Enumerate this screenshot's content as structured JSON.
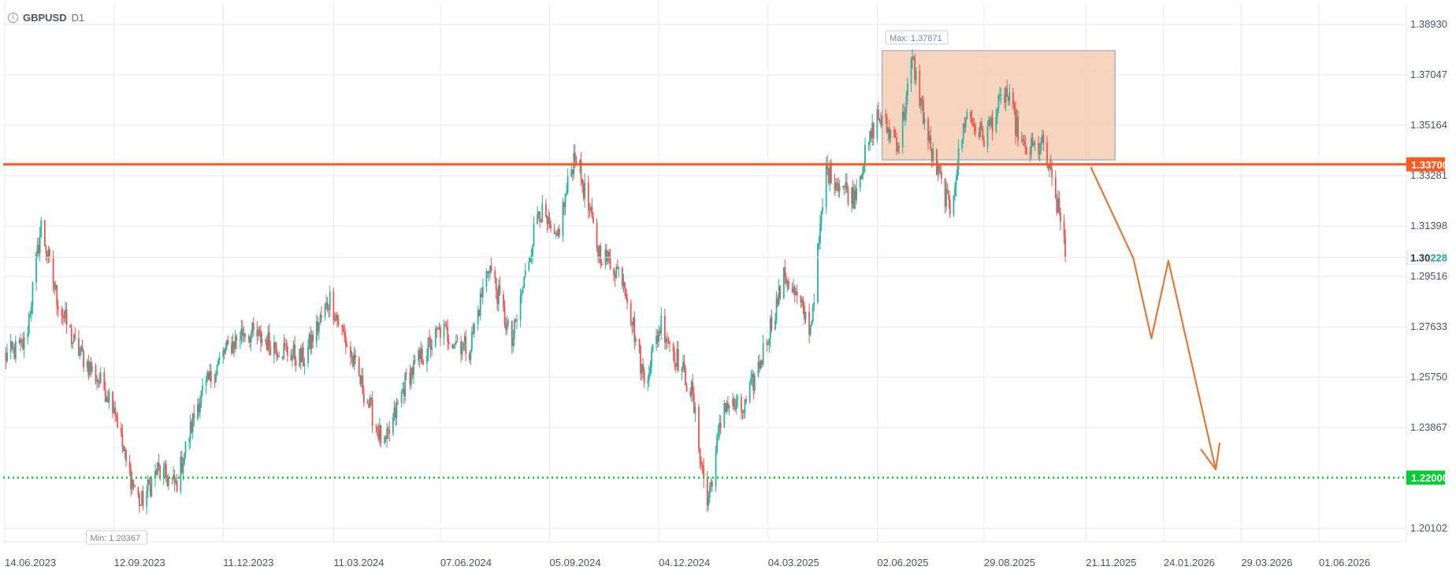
{
  "header": {
    "info_icon": "info-circle-icon",
    "symbol": "GBPUSD",
    "timeframe": "D1"
  },
  "chart_data": {
    "type": "candlestick",
    "title": "GBPUSD D1",
    "x_tick_labels": [
      "14.06.2023",
      "12.09.2023",
      "11.12.2023",
      "11.03.2024",
      "07.06.2024",
      "05.09.2024",
      "04.12.2024",
      "04.03.2025",
      "02.06.2025",
      "29.08.2025",
      "21.11.2025",
      "24.01.2026",
      "29.03.2026",
      "01.06.2026"
    ],
    "y_tick_labels": [
      "1.38930",
      "1.37047",
      "1.35164",
      "1.33281",
      "1.31398",
      "1.29516",
      "1.27633",
      "1.25750",
      "1.23867",
      "1.20102"
    ],
    "ylim": [
      1.1955,
      1.396
    ],
    "current_price": "1.30228",
    "current_price_prefix": "1.30",
    "current_price_suffix": "228",
    "max_label": "Max: 1.37871",
    "min_label": "Min: 1.20367",
    "resistance_line": {
      "value": 1.337,
      "label": "1.33700",
      "color": "#ff5a1f"
    },
    "support_line": {
      "value": 1.22,
      "label": "1.22000",
      "color": "#00cc33"
    },
    "zone": {
      "from_date": "2025-06-06",
      "to_date": "2025-12-15",
      "top": 1.3795,
      "bottom": 1.3387,
      "color": "#f5cdb3"
    },
    "projection": [
      {
        "date": "2025-11-25",
        "price": 1.336
      },
      {
        "date": "2025-12-30",
        "price": 1.302
      },
      {
        "date": "2026-01-14",
        "price": 1.272
      },
      {
        "date": "2026-01-28",
        "price": 1.301
      },
      {
        "date": "2026-03-08",
        "price": 1.223
      }
    ],
    "colors": {
      "up": "#26b3a0",
      "down": "#ef5350",
      "grid": "#e5eaf2"
    },
    "series": [
      {
        "date": "2023-06-14",
        "close": 1.265
      },
      {
        "date": "2023-07-01",
        "close": 1.27
      },
      {
        "date": "2023-07-14",
        "close": 1.314
      },
      {
        "date": "2023-07-27",
        "close": 1.287
      },
      {
        "date": "2023-08-10",
        "close": 1.27
      },
      {
        "date": "2023-08-25",
        "close": 1.26
      },
      {
        "date": "2023-09-12",
        "close": 1.248
      },
      {
        "date": "2023-09-22",
        "close": 1.225
      },
      {
        "date": "2023-10-04",
        "close": 1.21
      },
      {
        "date": "2023-10-18",
        "close": 1.223
      },
      {
        "date": "2023-11-02",
        "close": 1.217
      },
      {
        "date": "2023-11-20",
        "close": 1.248
      },
      {
        "date": "2023-12-11",
        "close": 1.266
      },
      {
        "date": "2023-12-28",
        "close": 1.275
      },
      {
        "date": "2024-01-20",
        "close": 1.27
      },
      {
        "date": "2024-02-15",
        "close": 1.264
      },
      {
        "date": "2024-03-08",
        "close": 1.287
      },
      {
        "date": "2024-03-28",
        "close": 1.262
      },
      {
        "date": "2024-04-22",
        "close": 1.231
      },
      {
        "date": "2024-05-10",
        "close": 1.257
      },
      {
        "date": "2024-06-07",
        "close": 1.275
      },
      {
        "date": "2024-07-01",
        "close": 1.268
      },
      {
        "date": "2024-07-17",
        "close": 1.3
      },
      {
        "date": "2024-08-05",
        "close": 1.27
      },
      {
        "date": "2024-08-27",
        "close": 1.321
      },
      {
        "date": "2024-09-10",
        "close": 1.307
      },
      {
        "date": "2024-09-26",
        "close": 1.342
      },
      {
        "date": "2024-10-15",
        "close": 1.305
      },
      {
        "date": "2024-11-05",
        "close": 1.295
      },
      {
        "date": "2024-11-22",
        "close": 1.256
      },
      {
        "date": "2024-12-06",
        "close": 1.278
      },
      {
        "date": "2024-12-31",
        "close": 1.252
      },
      {
        "date": "2025-01-13",
        "close": 1.21
      },
      {
        "date": "2025-01-27",
        "close": 1.248
      },
      {
        "date": "2025-02-12",
        "close": 1.245
      },
      {
        "date": "2025-02-26",
        "close": 1.264
      },
      {
        "date": "2025-03-18",
        "close": 1.296
      },
      {
        "date": "2025-04-08",
        "close": 1.276
      },
      {
        "date": "2025-04-21",
        "close": 1.335
      },
      {
        "date": "2025-05-13",
        "close": 1.325
      },
      {
        "date": "2025-06-02",
        "close": 1.355
      },
      {
        "date": "2025-06-20",
        "close": 1.345
      },
      {
        "date": "2025-07-01",
        "close": 1.376
      },
      {
        "date": "2025-07-16",
        "close": 1.342
      },
      {
        "date": "2025-08-01",
        "close": 1.32
      },
      {
        "date": "2025-08-14",
        "close": 1.356
      },
      {
        "date": "2025-08-29",
        "close": 1.347
      },
      {
        "date": "2025-09-16",
        "close": 1.364
      },
      {
        "date": "2025-10-01",
        "close": 1.342
      },
      {
        "date": "2025-10-17",
        "close": 1.344
      },
      {
        "date": "2025-11-03",
        "close": 1.31
      },
      {
        "date": "2025-11-04",
        "close": 1.3023
      }
    ]
  }
}
